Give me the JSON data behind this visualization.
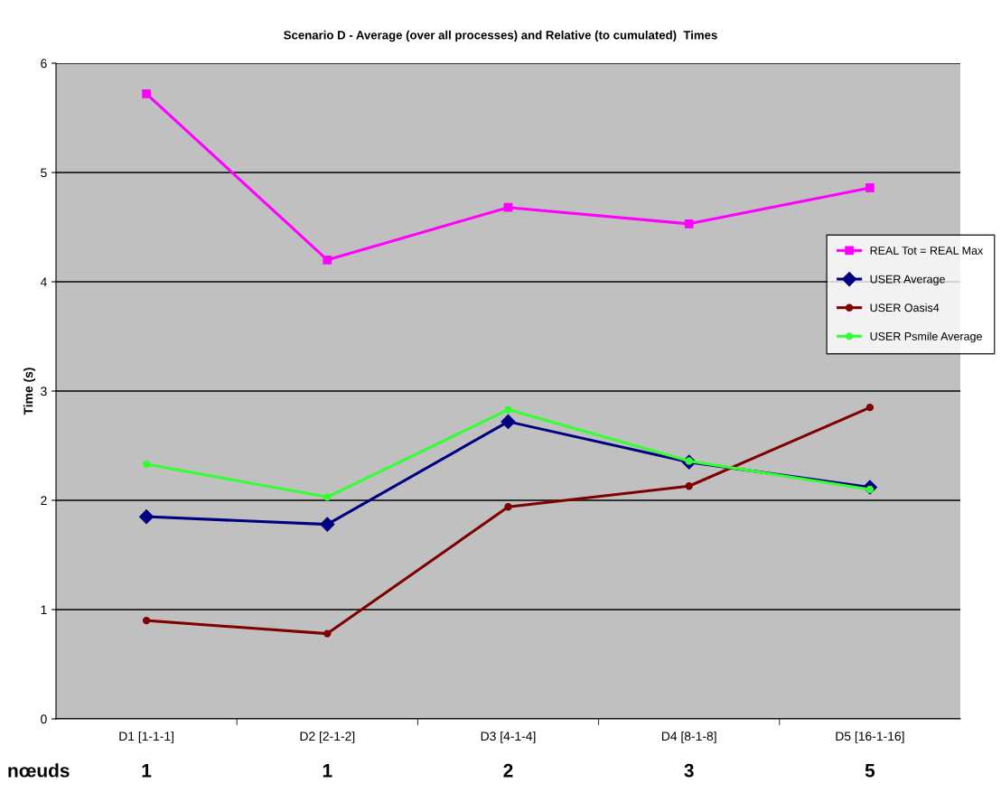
{
  "chart_data": {
    "type": "line",
    "title": "Scenario D - Average (over all processes) and Relative (to cumulated)  Times",
    "ylabel": "Time (s)",
    "categories": [
      "D1 [1-1-1]",
      "D2 [2-1-2]",
      "D3 [4-1-4]",
      "D4 [8-1-8]",
      "D5 [16-1-16]"
    ],
    "series": [
      {
        "name": "REAL Tot = REAL Max",
        "color": "#ff00ff",
        "marker": "square",
        "values": [
          5.72,
          4.2,
          4.68,
          4.53,
          4.86
        ]
      },
      {
        "name": "USER Average",
        "color": "#000080",
        "marker": "diamond",
        "values": [
          1.85,
          1.78,
          2.72,
          2.35,
          2.12
        ]
      },
      {
        "name": "USER Oasis4",
        "color": "#800000",
        "marker": "circle",
        "values": [
          0.9,
          0.78,
          1.94,
          2.13,
          2.85
        ]
      },
      {
        "name": "USER Psmile Average",
        "color": "#33ff33",
        "marker": "circle",
        "values": [
          2.33,
          2.03,
          2.83,
          2.36,
          2.1
        ]
      }
    ],
    "ylim": [
      0,
      6
    ],
    "yticks": [
      0,
      1,
      2,
      3,
      4,
      5,
      6
    ],
    "grid": "y",
    "legend": "right",
    "line_style": "solid",
    "annotations": [
      "nœuds",
      "1",
      "1",
      "2",
      "3",
      "5"
    ]
  }
}
